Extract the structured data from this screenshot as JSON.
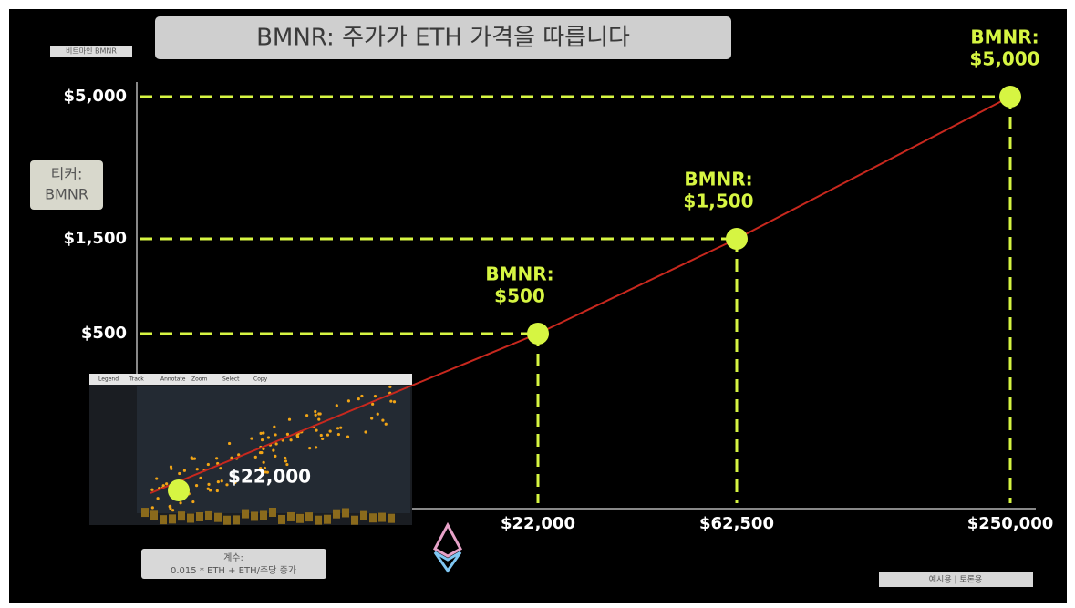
{
  "header": {
    "badge": "비트마인 BMNR",
    "ticker": [
      "티커:",
      "BMNR"
    ],
    "footer_left": [
      "계수:",
      "0.015 * ETH + ETH/주당 증가"
    ],
    "footer_right": "예시용 | 토론용"
  },
  "inset": {
    "toolbar": [
      "Legend",
      "Track",
      "Annotate",
      "Zoom",
      "Select",
      "Copy"
    ],
    "point_label": "$22,000"
  },
  "chart_data": {
    "type": "line",
    "title": "BMNR: 주가가 ETH 가격을 따릅니다",
    "x": [
      22000,
      62500,
      250000
    ],
    "values": [
      500,
      1500,
      5000
    ],
    "color": "#c8281e",
    "point_color": "#d6f542",
    "xticks": [
      {
        "value": 22000,
        "label": "$22,000"
      },
      {
        "value": 62500,
        "label": "$62,500"
      },
      {
        "value": 250000,
        "label": "$250,000"
      }
    ],
    "yticks": [
      {
        "value": 500,
        "label": "$500"
      },
      {
        "value": 1500,
        "label": "$1,500"
      },
      {
        "value": 5000,
        "label": "$5,000"
      }
    ],
    "annotations": [
      [
        "BMNR:",
        "$500"
      ],
      [
        "BMNR:",
        "$1,500"
      ],
      [
        "BMNR:",
        "$5,000"
      ]
    ]
  }
}
